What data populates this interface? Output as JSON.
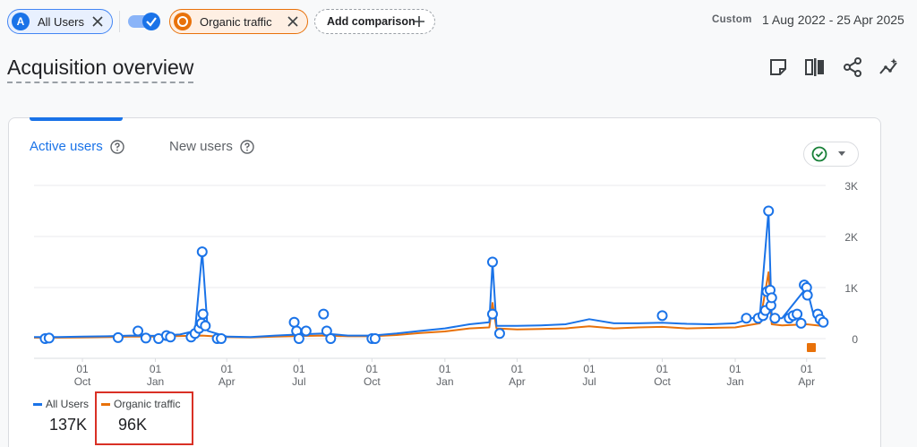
{
  "filters": {
    "all_users": {
      "badge": "A",
      "label": "All Users"
    },
    "organic": {
      "label": "Organic traffic"
    },
    "add_comparison_label": "Add comparison"
  },
  "date": {
    "custom_label": "Custom",
    "range": "1 Aug 2022 - 25 Apr 2025"
  },
  "page_title": "Acquisition overview",
  "toolbar_icons": [
    "annotation-icon",
    "compare-icon",
    "share-icon",
    "insights-icon"
  ],
  "tabs": [
    {
      "label": "Active users",
      "active": true
    },
    {
      "label": "New users",
      "active": false
    }
  ],
  "legend": [
    {
      "name": "All Users",
      "value": "137K",
      "color": "#1a73e8"
    },
    {
      "name": "Organic traffic",
      "value": "96K",
      "color": "#e8710a"
    }
  ],
  "colors": {
    "accent": "#1a73e8",
    "organic": "#e8710a",
    "highlight": "#d93025",
    "check": "#188038"
  },
  "chart_data": {
    "type": "line",
    "y_ticks": [
      "3K",
      "2K",
      "1K",
      "0"
    ],
    "ylim": [
      0,
      3000
    ],
    "x_ticks": [
      {
        "day": "01",
        "month": "Oct"
      },
      {
        "day": "01",
        "month": "Jan"
      },
      {
        "day": "01",
        "month": "Apr"
      },
      {
        "day": "01",
        "month": "Jul"
      },
      {
        "day": "01",
        "month": "Oct"
      },
      {
        "day": "01",
        "month": "Jan"
      },
      {
        "day": "01",
        "month": "Apr"
      },
      {
        "day": "01",
        "month": "Jul"
      },
      {
        "day": "01",
        "month": "Oct"
      },
      {
        "day": "01",
        "month": "Jan"
      },
      {
        "day": "01",
        "month": "Apr"
      }
    ],
    "x_tick_dates": [
      "2022-10-01",
      "2023-01-01",
      "2023-04-01",
      "2023-07-01",
      "2023-10-01",
      "2024-01-01",
      "2024-04-01",
      "2024-07-01",
      "2024-10-01",
      "2025-01-01",
      "2025-04-01"
    ],
    "x_range": [
      "2022-08-01",
      "2025-04-25"
    ],
    "series": [
      {
        "name": "All Users",
        "color": "#1a73e8",
        "values": [
          [
            "2022-08-01",
            30
          ],
          [
            "2022-09-01",
            30
          ],
          [
            "2022-10-01",
            40
          ],
          [
            "2022-11-01",
            45
          ],
          [
            "2022-12-01",
            60
          ],
          [
            "2023-01-01",
            55
          ],
          [
            "2023-02-01",
            80
          ],
          [
            "2023-02-20",
            150
          ],
          [
            "2023-03-01",
            1700
          ],
          [
            "2023-03-08",
            150
          ],
          [
            "2023-04-01",
            40
          ],
          [
            "2023-05-01",
            30
          ],
          [
            "2023-06-01",
            60
          ],
          [
            "2023-07-01",
            80
          ],
          [
            "2023-08-01",
            100
          ],
          [
            "2023-09-01",
            60
          ],
          [
            "2023-10-01",
            60
          ],
          [
            "2023-11-01",
            100
          ],
          [
            "2023-12-01",
            150
          ],
          [
            "2024-01-01",
            200
          ],
          [
            "2024-02-01",
            280
          ],
          [
            "2024-02-26",
            320
          ],
          [
            "2024-03-01",
            1500
          ],
          [
            "2024-03-06",
            250
          ],
          [
            "2024-04-01",
            250
          ],
          [
            "2024-05-01",
            260
          ],
          [
            "2024-06-01",
            280
          ],
          [
            "2024-07-01",
            380
          ],
          [
            "2024-08-01",
            300
          ],
          [
            "2024-09-01",
            300
          ],
          [
            "2024-10-01",
            310
          ],
          [
            "2024-11-01",
            290
          ],
          [
            "2024-12-01",
            280
          ],
          [
            "2025-01-01",
            300
          ],
          [
            "2025-02-01",
            450
          ],
          [
            "2025-02-12",
            2500
          ],
          [
            "2025-02-16",
            400
          ],
          [
            "2025-03-01",
            400
          ],
          [
            "2025-04-01",
            1000
          ],
          [
            "2025-04-10",
            450
          ],
          [
            "2025-04-25",
            380
          ]
        ],
        "markers": [
          [
            "2022-08-15",
            0
          ],
          [
            "2022-08-20",
            10
          ],
          [
            "2022-11-15",
            20
          ],
          [
            "2022-12-10",
            150
          ],
          [
            "2022-12-20",
            10
          ],
          [
            "2023-01-05",
            0
          ],
          [
            "2023-01-15",
            60
          ],
          [
            "2023-01-20",
            30
          ],
          [
            "2023-02-15",
            30
          ],
          [
            "2023-02-20",
            100
          ],
          [
            "2023-02-25",
            200
          ],
          [
            "2023-02-28",
            300
          ],
          [
            "2023-03-01",
            1700
          ],
          [
            "2023-03-02",
            480
          ],
          [
            "2023-03-05",
            250
          ],
          [
            "2023-03-20",
            0
          ],
          [
            "2023-03-25",
            0
          ],
          [
            "2023-06-25",
            320
          ],
          [
            "2023-06-28",
            150
          ],
          [
            "2023-07-01",
            0
          ],
          [
            "2023-07-10",
            150
          ],
          [
            "2023-08-01",
            480
          ],
          [
            "2023-08-05",
            150
          ],
          [
            "2023-08-10",
            0
          ],
          [
            "2023-10-01",
            0
          ],
          [
            "2023-10-05",
            0
          ],
          [
            "2024-03-01",
            1500
          ],
          [
            "2024-03-01",
            480
          ],
          [
            "2024-03-10",
            100
          ],
          [
            "2024-10-01",
            450
          ],
          [
            "2025-01-15",
            400
          ],
          [
            "2025-01-30",
            400
          ],
          [
            "2025-02-05",
            450
          ],
          [
            "2025-02-08",
            550
          ],
          [
            "2025-02-10",
            920
          ],
          [
            "2025-02-12",
            2500
          ],
          [
            "2025-02-14",
            950
          ],
          [
            "2025-02-15",
            650
          ],
          [
            "2025-02-16",
            800
          ],
          [
            "2025-02-20",
            400
          ],
          [
            "2025-03-10",
            400
          ],
          [
            "2025-03-15",
            450
          ],
          [
            "2025-03-20",
            480
          ],
          [
            "2025-03-25",
            300
          ],
          [
            "2025-03-29",
            1050
          ],
          [
            "2025-04-01",
            1000
          ],
          [
            "2025-04-02",
            850
          ],
          [
            "2025-04-15",
            480
          ],
          [
            "2025-04-18",
            380
          ],
          [
            "2025-04-22",
            320
          ]
        ]
      },
      {
        "name": "Organic traffic",
        "color": "#e8710a",
        "values": [
          [
            "2022-08-01",
            20
          ],
          [
            "2022-09-01",
            20
          ],
          [
            "2022-10-01",
            25
          ],
          [
            "2022-11-01",
            30
          ],
          [
            "2022-12-01",
            40
          ],
          [
            "2023-01-01",
            40
          ],
          [
            "2023-02-01",
            50
          ],
          [
            "2023-03-01",
            60
          ],
          [
            "2023-04-01",
            30
          ],
          [
            "2023-05-01",
            25
          ],
          [
            "2023-06-01",
            40
          ],
          [
            "2023-07-01",
            50
          ],
          [
            "2023-08-01",
            60
          ],
          [
            "2023-09-01",
            45
          ],
          [
            "2023-10-01",
            45
          ],
          [
            "2023-11-01",
            70
          ],
          [
            "2023-12-01",
            110
          ],
          [
            "2024-01-01",
            140
          ],
          [
            "2024-02-01",
            200
          ],
          [
            "2024-02-26",
            220
          ],
          [
            "2024-03-01",
            700
          ],
          [
            "2024-03-06",
            200
          ],
          [
            "2024-04-01",
            180
          ],
          [
            "2024-05-01",
            190
          ],
          [
            "2024-06-01",
            200
          ],
          [
            "2024-07-01",
            240
          ],
          [
            "2024-08-01",
            200
          ],
          [
            "2024-09-01",
            220
          ],
          [
            "2024-10-01",
            230
          ],
          [
            "2024-11-01",
            200
          ],
          [
            "2024-12-01",
            210
          ],
          [
            "2025-01-01",
            220
          ],
          [
            "2025-02-01",
            300
          ],
          [
            "2025-02-12",
            1300
          ],
          [
            "2025-02-16",
            280
          ],
          [
            "2025-03-01",
            260
          ],
          [
            "2025-04-01",
            280
          ],
          [
            "2025-04-25",
            240
          ]
        ]
      }
    ]
  }
}
